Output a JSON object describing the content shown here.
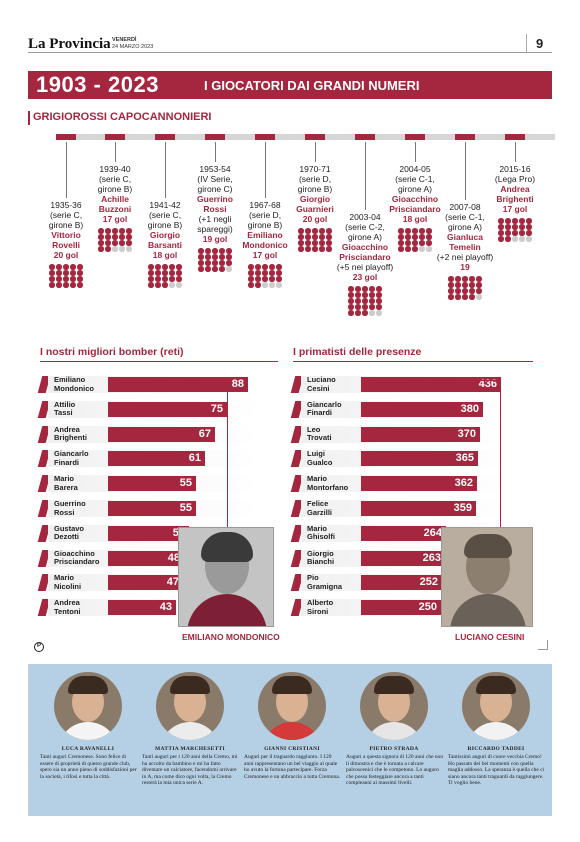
{
  "header": {
    "masthead": "La Provincia",
    "day": "VENERDÌ",
    "date": "24 MARZO 2023",
    "page_number": "9"
  },
  "title": {
    "years": "1903 - 2023",
    "subtitle": "I GIOCATORI DAI GRANDI NUMERI"
  },
  "section": "GRIGIOROSSI CAPOCANNONIERI",
  "colors": {
    "accent": "#a5263f",
    "panel": "#b5cfe4"
  },
  "scorers": [
    {
      "season": "1935-36",
      "league": "(serie C,",
      "group": "girone B)",
      "name1": "Vittorio",
      "name2": "Rovelli",
      "extra": "",
      "goals": "20 gol",
      "n": 20
    },
    {
      "season": "1939-40",
      "league": "(serie C,",
      "group": "girone B)",
      "name1": "Achille",
      "name2": "Buzzoni",
      "extra": "",
      "goals": "17 gol",
      "n": 17
    },
    {
      "season": "1941-42",
      "league": "(serie C,",
      "group": "girone B)",
      "name1": "Giorgio",
      "name2": "Barsanti",
      "extra": "",
      "goals": "18 gol",
      "n": 18
    },
    {
      "season": "1953-54",
      "league": "(IV Serie,",
      "group": "girone C)",
      "name1": "Guerrino",
      "name2": "Rossi",
      "extra": "(+1 negli spareggi)",
      "goals": "19 gol",
      "n": 19
    },
    {
      "season": "1967-68",
      "league": "(serie D,",
      "group": "girone B)",
      "name1": "Emiliano",
      "name2": "Mondonico",
      "extra": "",
      "goals": "17 gol",
      "n": 17
    },
    {
      "season": "1970-71",
      "league": "(serie D,",
      "group": "girone B)",
      "name1": "Giorgio",
      "name2": "Guarnieri",
      "extra": "",
      "goals": "20 gol",
      "n": 20
    },
    {
      "season": "2003-04",
      "league": "(serie C-2,",
      "group": "girone A)",
      "name1": "Gioacchino",
      "name2": "Prisciandaro",
      "extra": "(+5 nei playoff)",
      "goals": "23 gol",
      "n": 23
    },
    {
      "season": "2004-05",
      "league": "(serie C-1,",
      "group": "girone A)",
      "name1": "Gioacchino",
      "name2": "Prisciandaro",
      "extra": "",
      "goals": "18 gol",
      "n": 18
    },
    {
      "season": "2007-08",
      "league": "(serie C-1,",
      "group": "girone A)",
      "name1": "Gianluca",
      "name2": "Temelin",
      "extra": "(+2 nei playoff)",
      "goals": "19",
      "n": 19
    },
    {
      "season": "2015-16",
      "league": "(Lega Pro)",
      "group": "",
      "name1": "Andrea",
      "name2": "Brighenti",
      "extra": "",
      "goals": "17 gol",
      "n": 17
    }
  ],
  "bombers": {
    "title": "I nostri migliori bomber (reti)",
    "rows": [
      {
        "first": "Emiliano",
        "last": "Mondonico",
        "value": 88
      },
      {
        "first": "Attilio",
        "last": "Tassi",
        "value": 75
      },
      {
        "first": "Andrea",
        "last": "Brighenti",
        "value": 67
      },
      {
        "first": "Giancarlo",
        "last": "Finardi",
        "value": 61
      },
      {
        "first": "Mario",
        "last": "Barera",
        "value": 55
      },
      {
        "first": "Guerrino",
        "last": "Rossi",
        "value": 55
      },
      {
        "first": "Gustavo",
        "last": "Dezotti",
        "value": 51
      },
      {
        "first": "Gioacchino",
        "last": "Prisciandaro",
        "value": 48
      },
      {
        "first": "Mario",
        "last": "Nicolini",
        "value": 47
      },
      {
        "first": "Andrea",
        "last": "Tentoni",
        "value": 43
      }
    ],
    "photo_caption": "EMILIANO MONDONICO"
  },
  "presences": {
    "title": "I primatisti delle presenze",
    "rows": [
      {
        "first": "Luciano",
        "last": "Cesini",
        "value": 436
      },
      {
        "first": "Giancarlo",
        "last": "Finardi",
        "value": 380
      },
      {
        "first": "Leo",
        "last": "Trovati",
        "value": 370
      },
      {
        "first": "Luigi",
        "last": "Gualco",
        "value": 365
      },
      {
        "first": "Mario",
        "last": "Montorfano",
        "value": 362
      },
      {
        "first": "Felice",
        "last": "Garzilli",
        "value": 359
      },
      {
        "first": "Mario",
        "last": "Ghisolfi",
        "value": 264
      },
      {
        "first": "Giorgio",
        "last": "Bianchi",
        "value": 263
      },
      {
        "first": "Pio",
        "last": "Gramigna",
        "value": 252
      },
      {
        "first": "Alberto",
        "last": "Sironi",
        "value": 250
      }
    ],
    "photo_caption": "LUCIANO CESINI"
  },
  "copyright_glyph": "P",
  "testimonials": [
    {
      "name": "LUCA RAVANELLI",
      "quote": "Tanti auguri Cremonese. Sono felice di essere di proprietà di questo grande club, spero sia un anno pieno di soddisfazioni per la società, i tifosi e tutta la città."
    },
    {
      "name": "MATTIA MARCHESETTI",
      "quote": "Tanti auguri per i 120 anni della Cremo, mi ha accolto da bambino e mi ha fatto diventare un calciatore, facendomi arrivare in A, ma come dico ogni volta, la Cremo resterà la mia unica serie A."
    },
    {
      "name": "GIANNI CRISTIANI",
      "quote": "Auguri per il traguardo raggiunto. I 120 anni rappresentano un bel viaggio al quale ho avuto la fortuna partecipare. Forza Cremonese e un abbraccio a tutta Cremona."
    },
    {
      "name": "PIETRO STRADA",
      "quote": "Auguri a questa signora di 120 anni che non li dimostra e che è tornata a calcare palcoscenici che le competono. Lo auguro che possa festeggiare ancora a tanti compleanni ai massimi livelli."
    },
    {
      "name": "RICCARDO TADDEI",
      "quote": "Tantissimi auguri di cuore vecchia Cremo! Ho passato dei bei momenti con quella maglia addosso. La speranza è quella che ci siano ancora tanti traguardi da raggiungere. Ti voglio bene."
    }
  ]
}
